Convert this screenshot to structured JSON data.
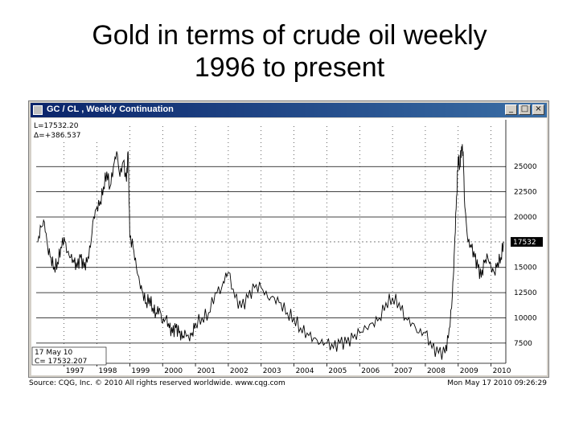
{
  "slide": {
    "title_line1": "Gold in terms of crude oil weekly",
    "title_line2": "1996 to present"
  },
  "window": {
    "title": "GC / CL , Weekly Continuation",
    "minimize_label": "_",
    "maximize_label": "□",
    "close_label": "×"
  },
  "readout": {
    "last": "L=17532.20",
    "delta": "Δ=+386.537",
    "date": "17 May 10",
    "close": "C=  17532.207"
  },
  "footer": {
    "source": "Source: CQG, Inc. © 2010 All rights reserved worldwide. www.cqg.com",
    "timestamp": "Mon May 17 2010 09:26:29"
  },
  "colors": {
    "line": "#000000",
    "grid": "#000000",
    "price_marker_bg": "#000000",
    "price_marker_text": "#ffffff",
    "title_bar": "#0a246a"
  },
  "chart_data": {
    "type": "line",
    "title": "",
    "xlabel": "",
    "ylabel": "",
    "ylim": [
      5500,
      29000
    ],
    "x_ticks": [
      "1997",
      "1998",
      "1999",
      "2000",
      "2001",
      "2002",
      "2003",
      "2004",
      "2005",
      "2006",
      "2007",
      "2008",
      "2009",
      "2010"
    ],
    "y_ticks": [
      {
        "label": "7500",
        "value": 7500
      },
      {
        "label": "10000",
        "value": 10000
      },
      {
        "label": "12500",
        "value": 12500
      },
      {
        "label": "15000",
        "value": 15000
      },
      {
        "label": "20000",
        "value": 20000
      },
      {
        "label": "22500",
        "value": 22500
      },
      {
        "label": "25000",
        "value": 25000
      }
    ],
    "current_marker": {
      "label": "17532",
      "value": 17532
    },
    "grid": true,
    "series": [
      {
        "x": [
          1996.2,
          1996.3,
          1996.4,
          1996.5,
          1996.6,
          1996.7,
          1996.8,
          1996.9,
          1997.0,
          1997.1,
          1997.2,
          1997.3,
          1997.4,
          1997.5,
          1997.6,
          1997.7,
          1997.8,
          1997.9,
          1998.0,
          1998.1,
          1998.2,
          1998.3,
          1998.4,
          1998.5,
          1998.6,
          1998.7,
          1998.8,
          1998.9,
          1998.95,
          1999.0,
          1999.1,
          1999.2,
          1999.3,
          1999.4,
          1999.5,
          1999.6,
          1999.7,
          1999.8,
          1999.9,
          2000.0,
          2000.1,
          2000.2,
          2000.3,
          2000.4,
          2000.5,
          2000.6,
          2000.7,
          2000.8,
          2000.9,
          2001.0,
          2001.2,
          2001.4,
          2001.6,
          2001.8,
          2001.9,
          2002.0,
          2002.2,
          2002.4,
          2002.6,
          2002.8,
          2003.0,
          2003.2,
          2003.4,
          2003.6,
          2003.8,
          2004.0,
          2004.2,
          2004.4,
          2004.6,
          2004.8,
          2005.0,
          2005.2,
          2005.4,
          2005.6,
          2005.8,
          2006.0,
          2006.2,
          2006.4,
          2006.6,
          2006.8,
          2007.0,
          2007.2,
          2007.4,
          2007.6,
          2007.8,
          2008.0,
          2008.2,
          2008.4,
          2008.6,
          2008.7,
          2008.8,
          2008.85,
          2008.9,
          2008.95,
          2009.0,
          2009.05,
          2009.1,
          2009.15,
          2009.2,
          2009.3,
          2009.4,
          2009.5,
          2009.6,
          2009.7,
          2009.8,
          2009.9,
          2010.0,
          2010.1,
          2010.2,
          2010.3,
          2010.38
        ],
        "values": [
          17500,
          19000,
          19500,
          17000,
          16000,
          15000,
          15500,
          17000,
          18000,
          16500,
          16000,
          15500,
          15000,
          16000,
          15000,
          15500,
          17000,
          20000,
          21000,
          21500,
          23000,
          24500,
          23000,
          25000,
          26500,
          24000,
          25500,
          23500,
          26500,
          18000,
          17000,
          15000,
          13500,
          12500,
          11500,
          12000,
          11000,
          10500,
          11000,
          9500,
          10000,
          9000,
          8500,
          9000,
          8500,
          8000,
          8500,
          8000,
          8500,
          9500,
          10000,
          10500,
          12500,
          13000,
          14000,
          14500,
          12000,
          11000,
          12000,
          13000,
          13000,
          12000,
          12000,
          11500,
          10500,
          10000,
          9000,
          8500,
          8000,
          7500,
          7500,
          7000,
          7500,
          7500,
          8000,
          8500,
          9000,
          9500,
          10000,
          11500,
          12000,
          11500,
          10000,
          9500,
          8500,
          8500,
          7000,
          6500,
          6500,
          8000,
          11000,
          14000,
          18000,
          22000,
          26000,
          25000,
          27000,
          26500,
          21000,
          17500,
          17000,
          16000,
          15000,
          14000,
          15500,
          16000,
          15000,
          14500,
          15500,
          16000,
          17532
        ]
      }
    ]
  }
}
